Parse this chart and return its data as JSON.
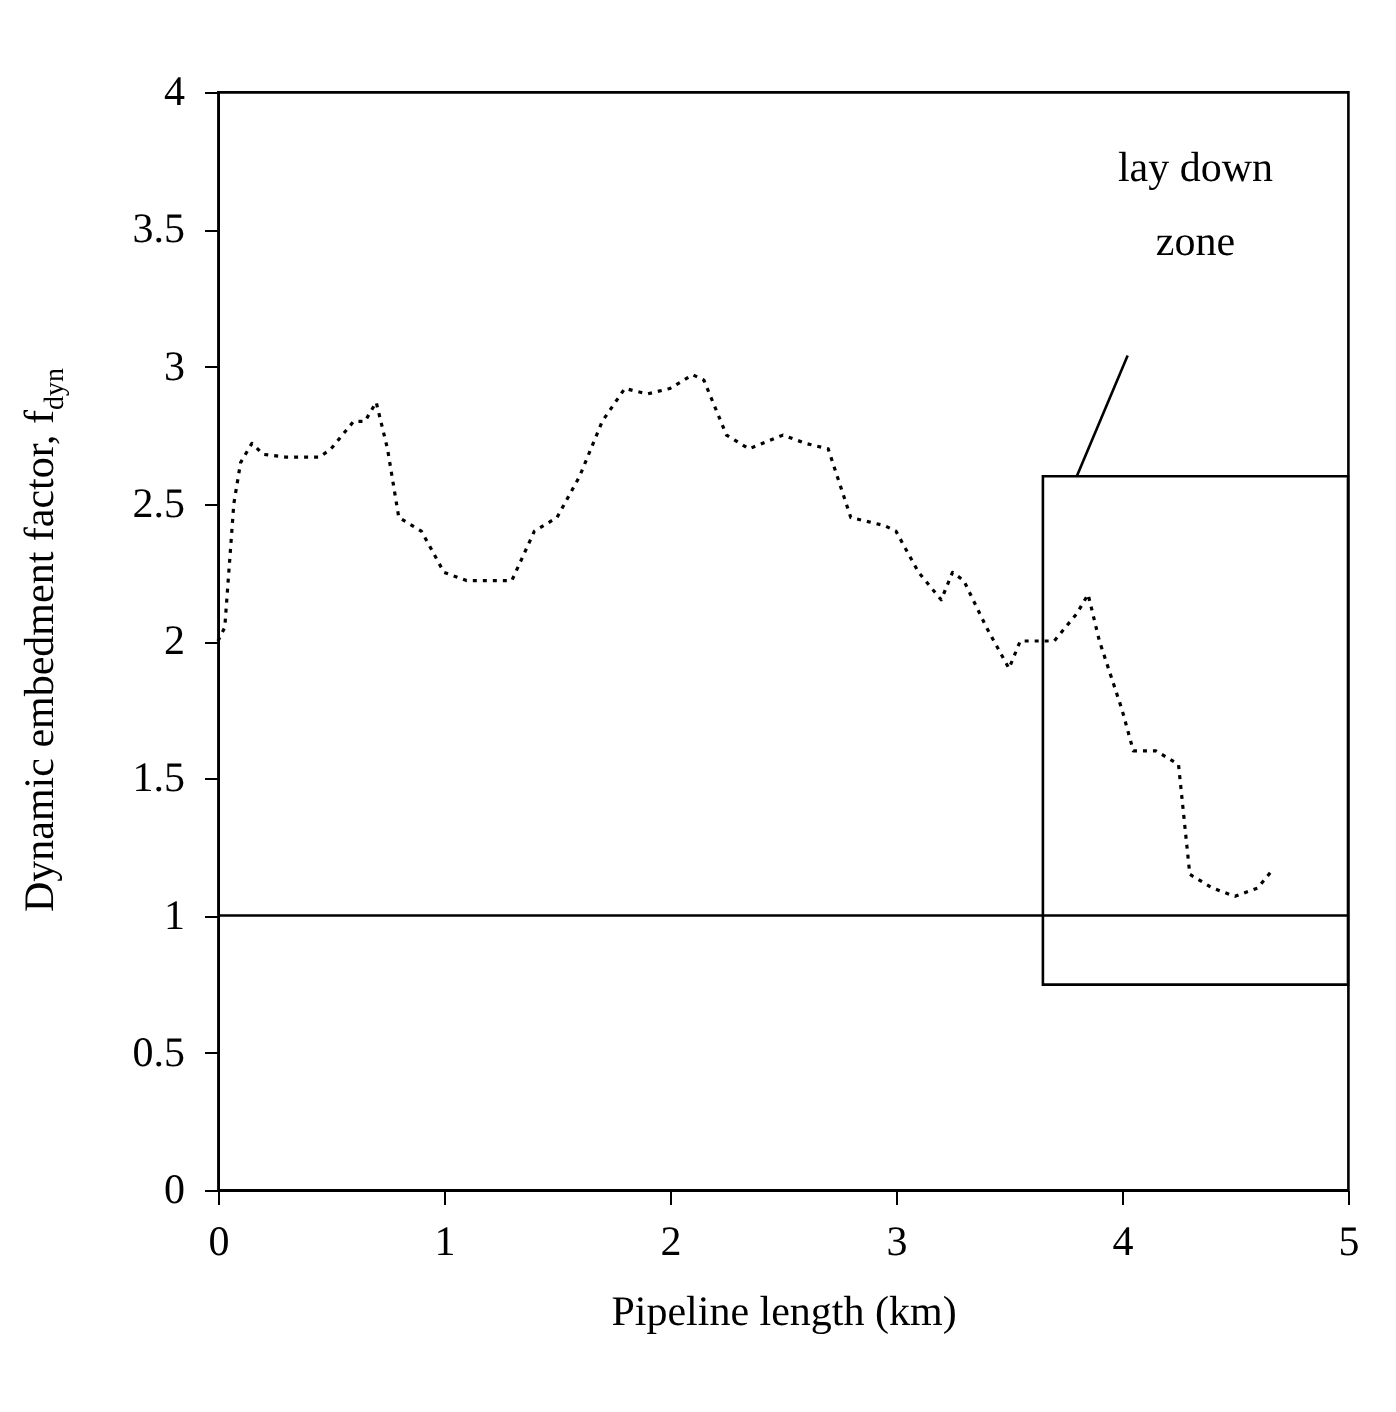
{
  "chart_data": {
    "type": "line",
    "xlabel": "Pipeline length (km)",
    "ylabel": "Dynamic embedment factor, f$_{dyn}$",
    "x": [
      0,
      0.03,
      0.07,
      0.1,
      0.15,
      0.2,
      0.3,
      0.45,
      0.5,
      0.6,
      0.65,
      0.7,
      0.75,
      0.8,
      0.9,
      1.0,
      1.1,
      1.3,
      1.4,
      1.5,
      1.6,
      1.7,
      1.8,
      1.9,
      2.0,
      2.1,
      2.15,
      2.25,
      2.35,
      2.5,
      2.6,
      2.7,
      2.8,
      2.95,
      3.0,
      3.1,
      3.2,
      3.25,
      3.3,
      3.4,
      3.5,
      3.55,
      3.7,
      3.8,
      3.85,
      3.9,
      4.0,
      4.05,
      4.15,
      4.25,
      4.3,
      4.4,
      4.5,
      4.6,
      4.67
    ],
    "series": [
      {
        "color": "#000000",
        "line_style": "dotted",
        "values": [
          2.0,
          2.05,
          2.5,
          2.65,
          2.72,
          2.68,
          2.67,
          2.67,
          2.7,
          2.8,
          2.8,
          2.87,
          2.7,
          2.45,
          2.4,
          2.25,
          2.22,
          2.22,
          2.4,
          2.45,
          2.6,
          2.8,
          2.92,
          2.9,
          2.92,
          2.97,
          2.95,
          2.75,
          2.7,
          2.75,
          2.72,
          2.7,
          2.45,
          2.42,
          2.4,
          2.25,
          2.15,
          2.25,
          2.22,
          2.05,
          1.9,
          2.0,
          2.0,
          2.1,
          2.17,
          2.0,
          1.75,
          1.6,
          1.6,
          1.55,
          1.15,
          1.1,
          1.07,
          1.1,
          1.17
        ]
      }
    ],
    "xlim": [
      0,
      5
    ],
    "xticks": [
      0,
      1,
      2,
      3,
      4,
      5
    ],
    "ylim": [
      0,
      4
    ],
    "yticks": [
      0,
      0.5,
      1,
      1.5,
      2,
      2.5,
      3,
      3.5,
      4
    ],
    "ref_lines": [
      {
        "axis": "y",
        "value": 1
      }
    ],
    "annotations": [
      "lay down zone"
    ],
    "grid": false
  }
}
